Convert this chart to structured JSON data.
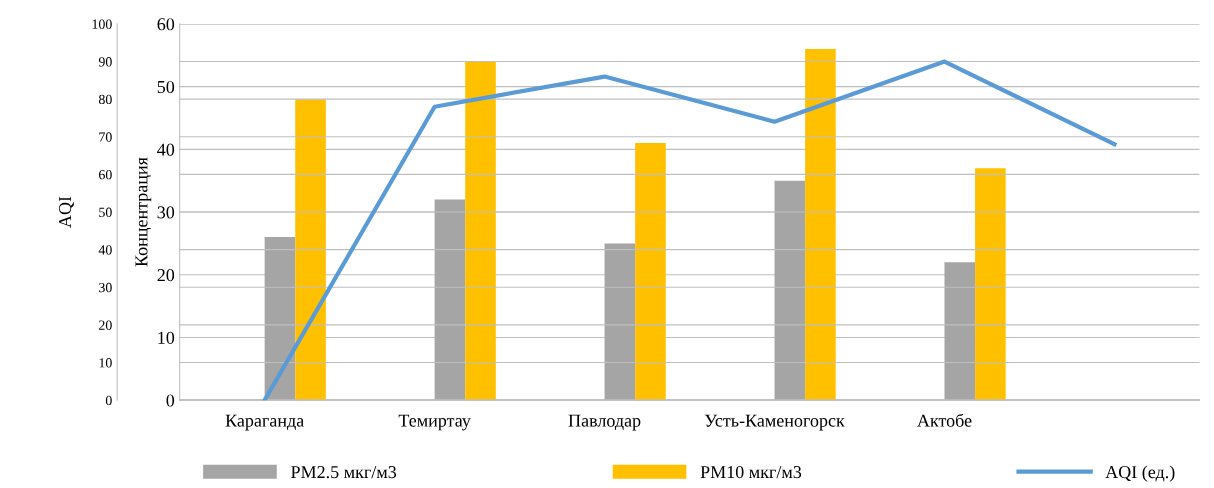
{
  "chart_data": {
    "type": "bar",
    "ylabel": "Концентрация",
    "y2label": "AQI",
    "categories": [
      "Караганда",
      "Темиртау",
      "Павлодар",
      "Усть-Каменогорск",
      "Актобе",
      null
    ],
    "series": [
      {
        "name": "PM2.5 мкг/м3",
        "color": "#a5a5a5",
        "values": [
          26,
          32,
          25,
          35,
          22,
          null
        ]
      },
      {
        "name": "PM10 мкг/м3",
        "color": "#ffc000",
        "values": [
          48,
          54,
          41,
          56,
          37,
          null
        ]
      },
      {
        "name": "AQI (ед.)",
        "type": "line",
        "axis": "y2",
        "color": "#5b9bd5",
        "values": [
          0,
          78,
          86,
          74,
          90,
          68
        ]
      }
    ],
    "ylim": [
      0,
      60
    ],
    "yticks": [
      0,
      10,
      20,
      30,
      40,
      50,
      60
    ],
    "y2lim": [
      0,
      100
    ],
    "y2ticks": [
      0,
      10,
      20,
      30,
      40,
      50,
      60,
      70,
      80,
      90,
      100
    ],
    "grid": "y",
    "legend": "bottom"
  }
}
